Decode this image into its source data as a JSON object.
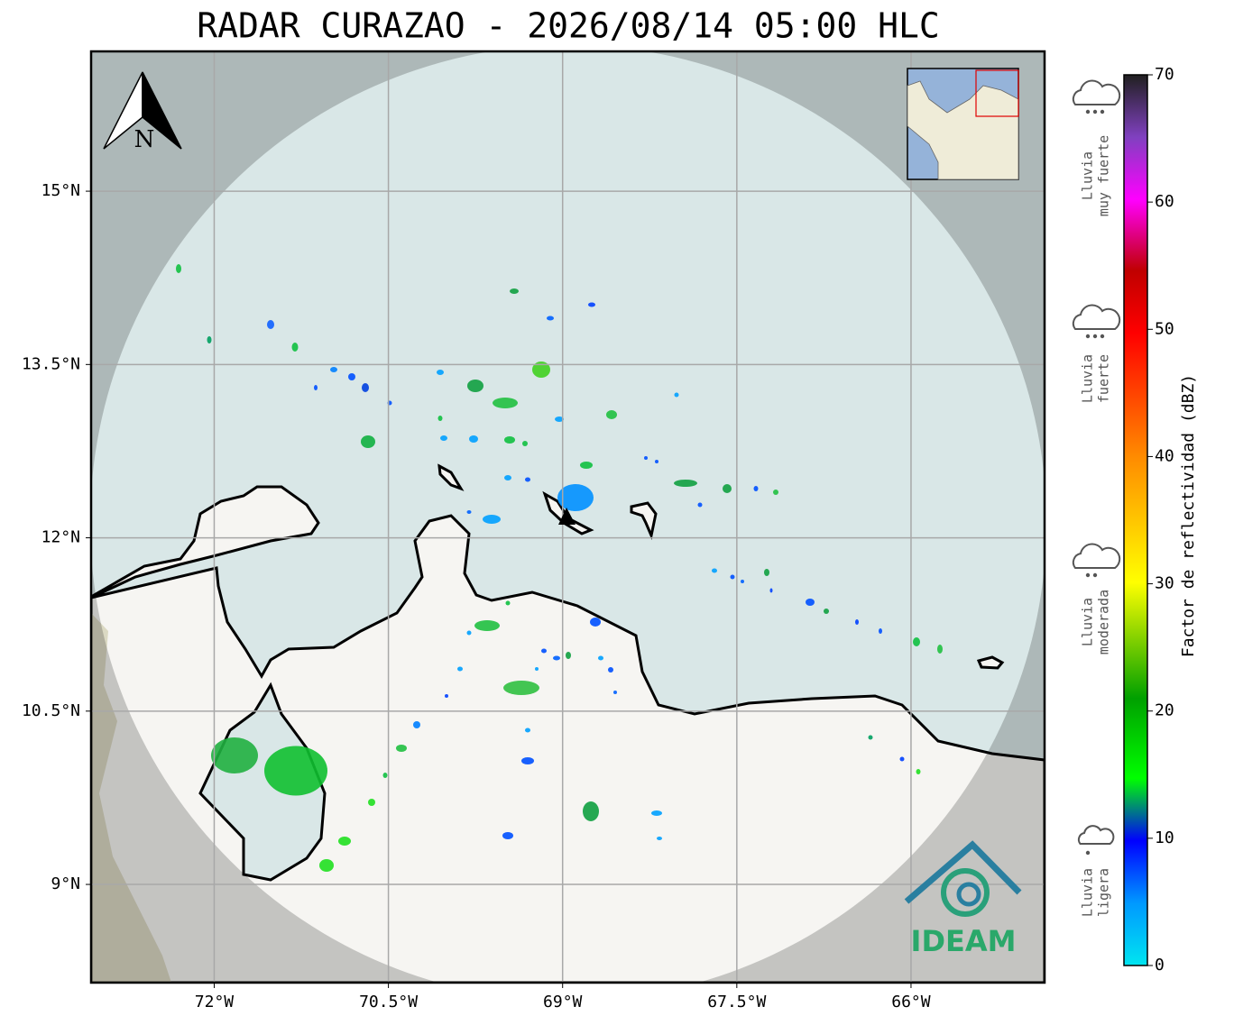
{
  "title": "RADAR CURAZAO - 2026/08/14 05:00 HLC",
  "map": {
    "xlim": [
      -73.06,
      -64.85
    ],
    "ylim": [
      8.15,
      16.21
    ],
    "xticks": [
      {
        "value": -72,
        "label": "72°W"
      },
      {
        "value": -70.5,
        "label": "70.5°W"
      },
      {
        "value": -69,
        "label": "69°W"
      },
      {
        "value": -67.5,
        "label": "67.5°W"
      },
      {
        "value": -66,
        "label": "66°W"
      }
    ],
    "yticks": [
      {
        "value": 9,
        "label": "9°N"
      },
      {
        "value": 10.5,
        "label": "10.5°N"
      },
      {
        "value": 12,
        "label": "12°N"
      },
      {
        "value": 13.5,
        "label": "13.5°N"
      },
      {
        "value": 15,
        "label": "15°N"
      }
    ],
    "grid": true,
    "north_label": "N"
  },
  "colorbar": {
    "label": "Factor de reflectividad (dBZ)",
    "clim": [
      0,
      70
    ],
    "ticks": [
      0,
      10,
      20,
      30,
      40,
      50,
      60,
      70
    ]
  },
  "rain_labels": [
    {
      "lines": [
        "Lluvia",
        "muy fuerte"
      ]
    },
    {
      "lines": [
        "Lluvia",
        "fuerte"
      ]
    },
    {
      "lines": [
        "Lluvia",
        "moderada"
      ]
    },
    {
      "lines": [
        "Lluvia",
        "ligera"
      ]
    }
  ],
  "logo": "IDEAM"
}
